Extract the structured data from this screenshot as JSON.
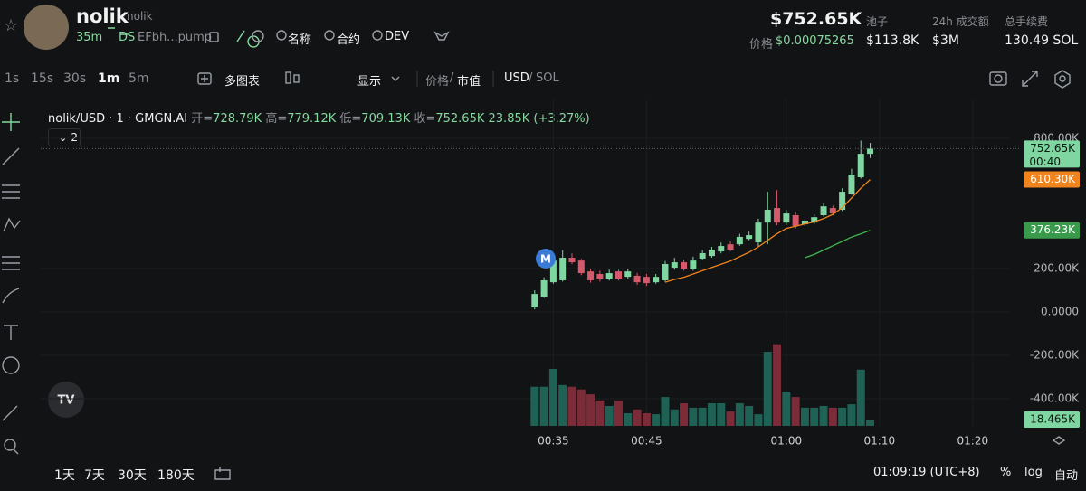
{
  "header": {
    "name": "nolik",
    "handle": "nolik",
    "age": "35m",
    "ds": "DS",
    "address": "EFbh...pump",
    "links": [
      "名称",
      "合约",
      "DEV"
    ],
    "market_cap": "$752.65K",
    "price_label": "价格",
    "price": "$0.00075265",
    "stats": [
      {
        "label": "池子",
        "value": "$113.8K"
      },
      {
        "label": "24h 成交额",
        "value": "$3M"
      },
      {
        "label": "总手续费",
        "value": "130.49 SOL"
      }
    ]
  },
  "toolbar": {
    "intervals": [
      "1s",
      "15s",
      "30s",
      "1m",
      "5m"
    ],
    "multi_chart": "多图表",
    "display": "显示",
    "price": "价格",
    "separator": "/",
    "market_value": "市值",
    "currency": "USD",
    "alt_currency": "SOL"
  },
  "chart_data": {
    "type": "candlestick",
    "title": "nolik/USD · 1 · GMGN.AI",
    "ohlc_legend": [
      {
        "label": "开=",
        "value": "728.79K"
      },
      {
        "label": "高=",
        "value": "779.12K"
      },
      {
        "label": "低=",
        "value": "709.13K"
      },
      {
        "label": "收=",
        "value": "752.65K"
      }
    ],
    "change": "23.85K (+3.27%)",
    "indicator_count": "2",
    "marker": "M",
    "x": [
      33,
      34,
      35,
      36,
      37,
      38,
      39,
      40,
      41,
      42,
      43,
      44,
      45,
      46,
      47,
      48,
      49,
      50,
      51,
      52,
      53,
      54,
      55,
      56,
      57,
      58,
      59,
      60,
      61,
      62,
      63,
      64,
      65,
      66,
      67,
      68,
      69
    ],
    "open": [
      21,
      71,
      137,
      146,
      250,
      237,
      187,
      175,
      154,
      187,
      162,
      167,
      162,
      137,
      146,
      204,
      229,
      196,
      246,
      258,
      279,
      312,
      312,
      337,
      321,
      412,
      479,
      412,
      446,
      404,
      412,
      446,
      479,
      471,
      546,
      621,
      728.79
    ],
    "high": [
      100,
      160,
      260,
      285,
      270,
      245,
      200,
      190,
      195,
      195,
      200,
      180,
      175,
      175,
      235,
      250,
      240,
      255,
      285,
      300,
      320,
      325,
      360,
      370,
      430,
      554,
      562,
      470,
      460,
      430,
      450,
      500,
      490,
      570,
      660,
      790,
      779.12
    ],
    "low": [
      12,
      65,
      130,
      140,
      220,
      170,
      135,
      140,
      145,
      145,
      150,
      125,
      120,
      130,
      140,
      195,
      190,
      190,
      240,
      250,
      270,
      280,
      305,
      330,
      300,
      312,
      400,
      400,
      385,
      395,
      405,
      440,
      445,
      465,
      540,
      615,
      709.13
    ],
    "close": [
      83,
      146,
      237,
      250,
      229,
      179,
      146,
      154,
      179,
      154,
      187,
      137,
      133,
      162,
      221,
      229,
      200,
      237,
      271,
      287,
      304,
      287,
      346,
      354,
      412,
      471,
      412,
      454,
      396,
      421,
      437,
      487,
      454,
      554,
      633,
      729,
      752.65
    ],
    "volume": [
      114,
      114,
      166,
      119,
      114,
      106,
      92,
      74,
      58,
      74,
      37,
      48,
      37,
      34,
      84,
      48,
      66,
      53,
      53,
      66,
      66,
      42,
      66,
      58,
      34,
      216,
      238,
      100,
      84,
      53,
      53,
      58,
      53,
      53,
      63,
      164,
      18.465
    ],
    "ma_fast": [
      null,
      null,
      null,
      null,
      null,
      null,
      null,
      null,
      null,
      null,
      null,
      null,
      null,
      null,
      137,
      150,
      160,
      175,
      190,
      205,
      220,
      235,
      255,
      275,
      300,
      330,
      360,
      385,
      395,
      405,
      415,
      430,
      450,
      480,
      525,
      570,
      610.3
    ],
    "ma_slow": [
      null,
      null,
      null,
      null,
      null,
      null,
      null,
      null,
      null,
      null,
      null,
      null,
      null,
      null,
      null,
      null,
      null,
      null,
      null,
      null,
      null,
      null,
      null,
      null,
      null,
      null,
      null,
      null,
      null,
      250,
      265,
      285,
      305,
      325,
      345,
      360,
      376.23
    ],
    "xlim": [
      -20,
      84
    ],
    "xticks": [
      {
        "value": 35,
        "label": "00:35"
      },
      {
        "value": 45,
        "label": "00:45"
      },
      {
        "value": 60,
        "label": "01:00"
      },
      {
        "value": 70,
        "label": "01:10"
      },
      {
        "value": 80,
        "label": "01:20"
      }
    ],
    "ylim": [
      -525,
      946
    ],
    "yticks": [
      {
        "value": -400,
        "label": "-400.00K"
      },
      {
        "value": -200,
        "label": "-200.00K"
      },
      {
        "value": 0,
        "label": "0.0000"
      },
      {
        "value": 200,
        "label": "200.00K"
      },
      {
        "value": 800,
        "label": "800.00K"
      }
    ],
    "vlim": [
      0,
      930
    ],
    "grid": true,
    "price_labels": [
      {
        "value": 752.65,
        "label": "752.65K",
        "color": "#7fd6a1"
      },
      {
        "value": 610.3,
        "label": "610.30K",
        "color": "#f0841e"
      },
      {
        "value": 376.23,
        "label": "376.23K",
        "color": "#3a9a4c"
      }
    ],
    "countdown": "00:40",
    "volume_label": {
      "value": 18.465,
      "label": "18.465K",
      "color": "#7fd6a1"
    },
    "colors": {
      "up": "#7fd6a1",
      "down": "#d5596b",
      "volume_up": "#1f6155",
      "volume_down": "#7b2c38",
      "ma_fast": "#f0841e",
      "ma_slow": "#3fb64f"
    }
  },
  "footer": {
    "ranges": [
      "1天",
      "7天",
      "30天",
      "180天"
    ],
    "clock": "01:09:19 (UTC+8)",
    "percent": "%",
    "log": "log",
    "auto": "自动"
  }
}
